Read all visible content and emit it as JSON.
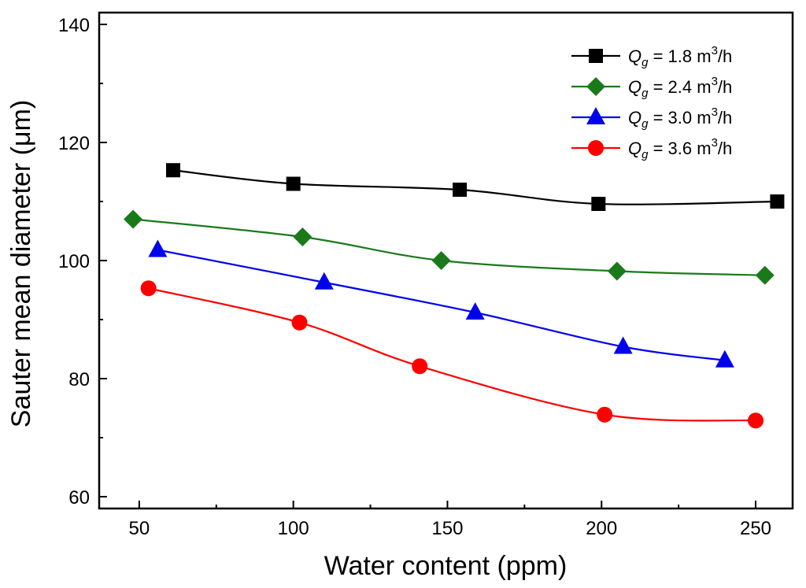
{
  "chart_data": {
    "type": "line",
    "title": "",
    "xlabel": "Water content (ppm)",
    "ylabel": "Sauter mean diameter (μm)",
    "xlim": [
      37,
      262
    ],
    "ylim": [
      58,
      142
    ],
    "xticks": [
      50,
      100,
      150,
      200,
      250
    ],
    "yticks": [
      60,
      80,
      100,
      120,
      140
    ],
    "grid": false,
    "legend_position": "top-right",
    "series": [
      {
        "name": "Q_g = 1.8 m³/h",
        "legend": {
          "sym": "Q",
          "sub": "g",
          "mid": " = 1.8 m",
          "sup": "3",
          "tail": "/h"
        },
        "color": "#000000",
        "marker": "square",
        "x": [
          61,
          100,
          154,
          199,
          257
        ],
        "y": [
          115.3,
          113.0,
          112.0,
          109.6,
          110.0
        ]
      },
      {
        "name": "Q_g = 2.4 m³/h",
        "legend": {
          "sym": "Q",
          "sub": "g",
          "mid": " = 2.4 m",
          "sup": "3",
          "tail": "/h"
        },
        "color": "#1a7a1a",
        "marker": "diamond",
        "x": [
          48,
          103,
          148,
          205,
          253
        ],
        "y": [
          107.0,
          104.0,
          100.0,
          98.2,
          97.5
        ]
      },
      {
        "name": "Q_g = 3.0 m³/h",
        "legend": {
          "sym": "Q",
          "sub": "g",
          "mid": " = 3.0 m",
          "sup": "3",
          "tail": "/h"
        },
        "color": "#0000ee",
        "marker": "triangle",
        "x": [
          56,
          110,
          159,
          207,
          240
        ],
        "y": [
          101.8,
          96.3,
          91.2,
          85.4,
          83.1
        ]
      },
      {
        "name": "Q_g = 3.6 m³/h",
        "legend": {
          "sym": "Q",
          "sub": "g",
          "mid": " = 3.6 m",
          "sup": "3",
          "tail": "/h"
        },
        "color": "#ff0000",
        "marker": "circle",
        "x": [
          53,
          102,
          141,
          201,
          250
        ],
        "y": [
          95.3,
          89.5,
          82.1,
          73.9,
          72.9
        ]
      }
    ]
  }
}
